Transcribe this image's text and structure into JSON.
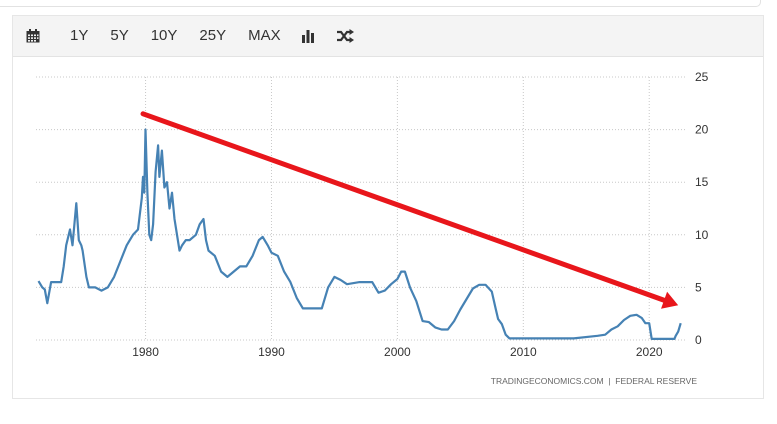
{
  "toolbar": {
    "calendar_icon": "calendar-icon",
    "ranges": [
      "1Y",
      "5Y",
      "10Y",
      "25Y",
      "MAX"
    ],
    "bar_chart_icon": "bar-chart-icon",
    "shuffle_icon": "shuffle-icon"
  },
  "colors": {
    "line": "#4682b4",
    "arrow": "#e8161b",
    "grid": "#c8c8c8",
    "text": "#333333"
  },
  "chart_data": {
    "type": "line",
    "title": "",
    "xlabel": "",
    "ylabel": "",
    "xlim": [
      1971.3,
      2023.0
    ],
    "ylim": [
      0,
      25
    ],
    "xticks": [
      1980,
      1990,
      2000,
      2010,
      2020
    ],
    "yticks": [
      0,
      5,
      10,
      15,
      20,
      25
    ],
    "y_axis_side": "right",
    "grid": true,
    "source": "TRADINGECONOMICS.COM  |  FEDERAL RESERVE",
    "series": [
      {
        "x": [
          1971.5,
          1971.8,
          1972.0,
          1972.2,
          1972.5,
          1973.0,
          1973.3,
          1973.5,
          1973.7,
          1974.0,
          1974.2,
          1974.5,
          1974.7,
          1974.9,
          1975.0,
          1975.3,
          1975.5,
          1976.0,
          1976.5,
          1977.0,
          1977.5,
          1978.0,
          1978.5,
          1979.0,
          1979.4,
          1979.7,
          1979.8,
          1979.9,
          1980.0,
          1980.15,
          1980.3,
          1980.45,
          1980.6,
          1980.8,
          1981.0,
          1981.1,
          1981.3,
          1981.5,
          1981.7,
          1981.9,
          1982.1,
          1982.3,
          1982.5,
          1982.7,
          1982.9,
          1983.2,
          1983.5,
          1984.0,
          1984.3,
          1984.6,
          1984.8,
          1985.0,
          1985.5,
          1986.0,
          1986.5,
          1987.0,
          1987.5,
          1988.0,
          1988.5,
          1989.0,
          1989.3,
          1989.7,
          1990.0,
          1990.5,
          1991.0,
          1991.5,
          1992.0,
          1992.5,
          1993.0,
          1994.0,
          1994.5,
          1995.0,
          1995.5,
          1996.0,
          1997.0,
          1998.0,
          1998.5,
          1999.0,
          1999.5,
          2000.0,
          2000.3,
          2000.6,
          2001.0,
          2001.5,
          2002.0,
          2002.5,
          2003.0,
          2003.5,
          2004.0,
          2004.5,
          2005.0,
          2005.5,
          2006.0,
          2006.5,
          2007.0,
          2007.5,
          2007.8,
          2008.0,
          2008.3,
          2008.6,
          2008.9,
          2009.0,
          2010.0,
          2012.0,
          2014.0,
          2015.9,
          2016.5,
          2017.0,
          2017.5,
          2018.0,
          2018.5,
          2019.0,
          2019.4,
          2019.7,
          2020.0,
          2020.2,
          2021.0,
          2022.0,
          2022.1,
          2022.3,
          2022.5
        ],
        "y": [
          5.6,
          5.0,
          4.8,
          3.5,
          5.5,
          5.5,
          5.5,
          7.0,
          9.0,
          10.5,
          9.0,
          13.0,
          9.5,
          9.0,
          8.5,
          6.0,
          5.0,
          5.0,
          4.7,
          5.0,
          6.0,
          7.5,
          9.0,
          10.0,
          10.5,
          13.5,
          15.5,
          14.0,
          20.0,
          14.0,
          10.0,
          9.5,
          11.0,
          16.0,
          18.5,
          15.5,
          18.0,
          14.5,
          15.0,
          12.5,
          14.0,
          11.5,
          10.0,
          8.5,
          9.0,
          9.5,
          9.5,
          10.0,
          11.0,
          11.5,
          9.5,
          8.5,
          8.0,
          6.5,
          6.0,
          6.5,
          7.0,
          7.0,
          8.0,
          9.5,
          9.8,
          9.0,
          8.3,
          8.0,
          6.5,
          5.5,
          4.0,
          3.0,
          3.0,
          3.0,
          5.0,
          6.0,
          5.7,
          5.3,
          5.5,
          5.5,
          4.5,
          4.7,
          5.3,
          5.8,
          6.5,
          6.5,
          5.0,
          3.7,
          1.8,
          1.7,
          1.2,
          1.0,
          1.0,
          1.8,
          2.9,
          3.9,
          4.9,
          5.25,
          5.25,
          4.6,
          3.0,
          2.0,
          1.5,
          0.5,
          0.15,
          0.15,
          0.15,
          0.15,
          0.15,
          0.4,
          0.5,
          1.0,
          1.3,
          1.9,
          2.3,
          2.4,
          2.1,
          1.6,
          1.6,
          0.1,
          0.1,
          0.1,
          0.4,
          0.8,
          1.6
        ]
      }
    ],
    "trend_arrow": {
      "from": {
        "x": 1979.8,
        "y": 21.5
      },
      "to": {
        "x": 2022.3,
        "y": 3.3
      }
    }
  }
}
